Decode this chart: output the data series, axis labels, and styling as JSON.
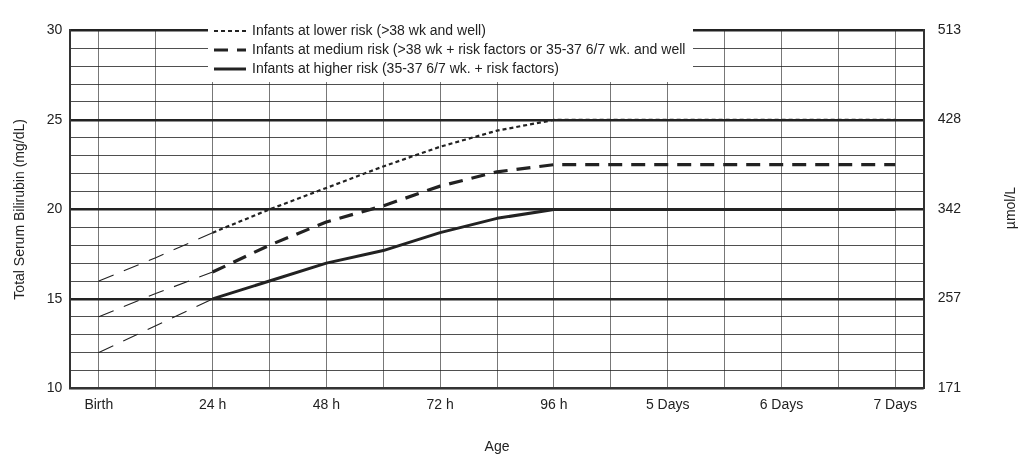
{
  "chart_data": {
    "type": "line",
    "xlabel": "Age",
    "ylabel": "Total Serum Bilirubin (mg/dL)",
    "y2label": "µmol/L",
    "categories": [
      "Birth",
      null,
      "24 h",
      null,
      "48 h",
      null,
      "72 h",
      null,
      "96 h",
      null,
      "5 Days",
      null,
      "6 Days",
      null,
      "7 Days"
    ],
    "ylim": [
      10,
      30
    ],
    "yticks": [
      10,
      {
        "value": 11,
        "label": null
      },
      {
        "value": 12,
        "label": null
      },
      {
        "value": 13,
        "label": null
      },
      {
        "value": 14,
        "label": null
      },
      15,
      {
        "value": 16,
        "label": null
      },
      {
        "value": 17,
        "label": null
      },
      {
        "value": 18,
        "label": null
      },
      {
        "value": 19,
        "label": null
      },
      20,
      {
        "value": 21,
        "label": null
      },
      {
        "value": 22,
        "label": null
      },
      {
        "value": 23,
        "label": null
      },
      {
        "value": 24,
        "label": null
      },
      25,
      {
        "value": 26,
        "label": null
      },
      {
        "value": 27,
        "label": null
      },
      {
        "value": 28,
        "label": null
      },
      {
        "value": 29,
        "label": null
      },
      30
    ],
    "y2lim": [
      171,
      513
    ],
    "y2ticks": [
      171,
      257,
      342,
      428,
      513
    ],
    "grid": true,
    "legend": "top",
    "marker": "none",
    "series": [
      {
        "name": "Infants at lower risk (>38 wk and well)",
        "color": "#222222",
        "line_style": "dotted",
        "values": [
          null,
          null,
          18.7,
          20,
          21.2,
          22.4,
          23.5,
          24.4,
          25,
          25,
          25,
          25,
          25,
          25,
          25
        ]
      },
      {
        "name": "Infants at medium risk (>38 wk + risk factors or 35-37 6/7 wk. and well",
        "color": "#222222",
        "line_style": "dashed",
        "values": [
          null,
          null,
          16.5,
          18,
          19.3,
          20.2,
          21.3,
          22.1,
          22.5,
          22.5,
          22.5,
          22.5,
          22.5,
          22.5,
          22.5
        ]
      },
      {
        "name": "Infants at higher risk (35-37 6/7 wk. + risk factors)",
        "color": "#222222",
        "line_style": "solid",
        "values": [
          null,
          null,
          15,
          16,
          17,
          17.7,
          18.7,
          19.5,
          20,
          20,
          20,
          20,
          20,
          20,
          20
        ]
      },
      {
        "color": "#222222",
        "line_style": "dashed",
        "values": [
          16,
          17.3,
          18.7,
          null,
          null,
          null,
          null,
          null,
          null,
          null,
          null,
          null,
          null,
          null,
          null
        ]
      },
      {
        "color": "#222222",
        "line_style": "dashed",
        "values": [
          14,
          15.3,
          16.5,
          null,
          null,
          null,
          null,
          null,
          null,
          null,
          null,
          null,
          null,
          null,
          null
        ]
      },
      {
        "color": "#222222",
        "line_style": "dashed",
        "values": [
          12,
          13.5,
          15,
          null,
          null,
          null,
          null,
          null,
          null,
          null,
          null,
          null,
          null,
          null,
          null
        ]
      }
    ]
  }
}
